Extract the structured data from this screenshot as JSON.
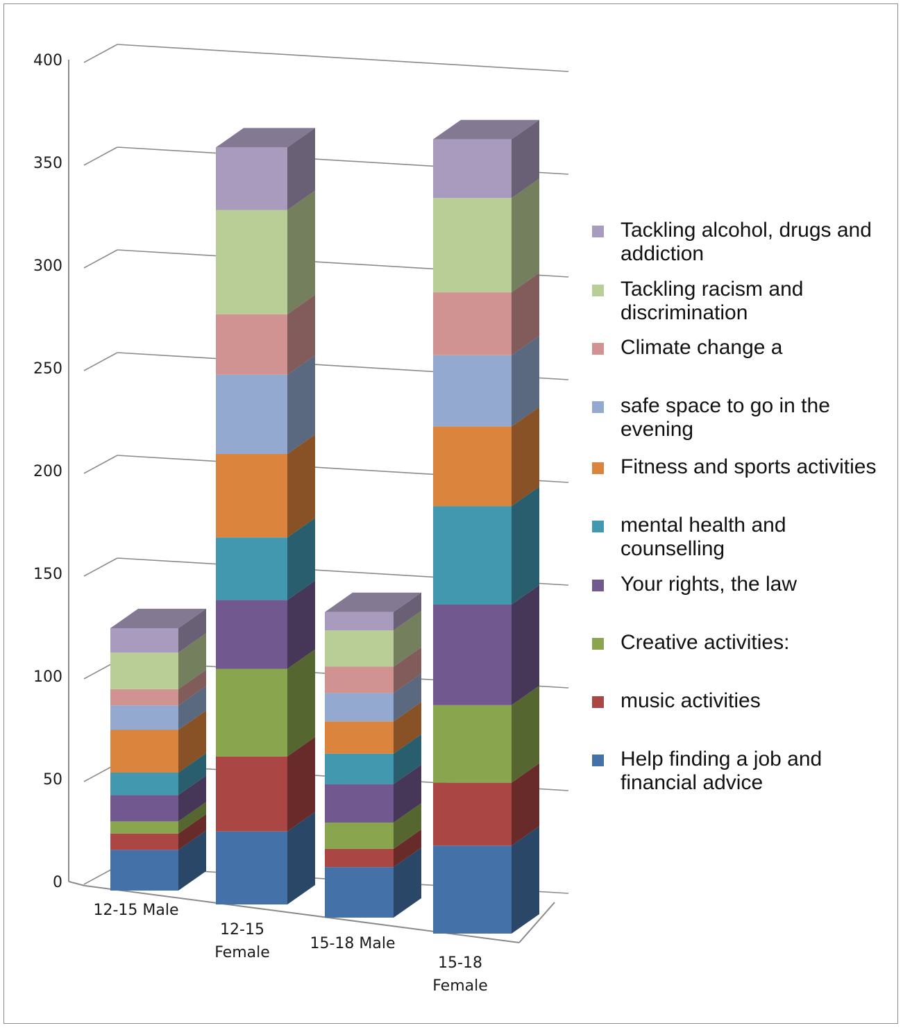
{
  "chart_data": {
    "type": "bar",
    "stacked": true,
    "three_d": true,
    "categories": [
      "12-15 Male",
      "12-15 Female",
      "15-18 Male",
      "15-18 Female"
    ],
    "category_lines": [
      [
        "12-15 Male"
      ],
      [
        "12-15",
        "Female"
      ],
      [
        "15-18 Male"
      ],
      [
        "15-18",
        "Female"
      ]
    ],
    "ylim": [
      0,
      400
    ],
    "yticks": [
      "0",
      "50",
      "100",
      "150",
      "200",
      "250",
      "300",
      "350",
      "400"
    ],
    "grid": true,
    "legend_position": "right",
    "series": [
      {
        "name": "Help finding a job and financial advice",
        "legend_lines": [
          "Help finding a job and",
          "financial advice"
        ],
        "color": "#4472A8",
        "values": [
          20,
          35,
          25,
          42
        ]
      },
      {
        "name": " music activities",
        "legend_lines": [
          " music activities"
        ],
        "color": "#AA4643",
        "values": [
          8,
          36,
          9,
          30
        ]
      },
      {
        "name": "Creative activities:",
        "legend_lines": [
          "Creative activities:"
        ],
        "color": "#89A54E",
        "values": [
          6,
          42,
          13,
          37
        ]
      },
      {
        "name": "Your rights, the law",
        "legend_lines": [
          "Your rights, the law"
        ],
        "color": "#71588F",
        "values": [
          13,
          33,
          19,
          48
        ]
      },
      {
        "name": "mental health and counselling",
        "legend_lines": [
          "mental health and",
          "counselling"
        ],
        "color": "#4198AF",
        "values": [
          11,
          30,
          15,
          47
        ]
      },
      {
        "name": "Fitness and sports activities",
        "legend_lines": [
          "Fitness and sports activities"
        ],
        "color": "#DB843D",
        "values": [
          21,
          40,
          16,
          38
        ]
      },
      {
        "name": " safe space to go in the evening",
        "legend_lines": [
          " safe space to go in the",
          "evening"
        ],
        "color": "#93A9CF",
        "values": [
          12,
          38,
          14,
          34
        ]
      },
      {
        "name": "Climate change a",
        "legend_lines": [
          "Climate change a"
        ],
        "color": "#D19392",
        "values": [
          8,
          29,
          13,
          30
        ]
      },
      {
        "name": "Tackling racism and discrimination",
        "legend_lines": [
          "Tackling racism and",
          "discrimination"
        ],
        "color": "#B9CD96",
        "values": [
          18,
          50,
          18,
          45
        ]
      },
      {
        "name": "Tackling alcohol, drugs and addiction",
        "legend_lines": [
          "Tackling alcohol, drugs and",
          "addiction"
        ],
        "color": "#A99BBD",
        "values": [
          12,
          30,
          9,
          28
        ]
      }
    ]
  }
}
